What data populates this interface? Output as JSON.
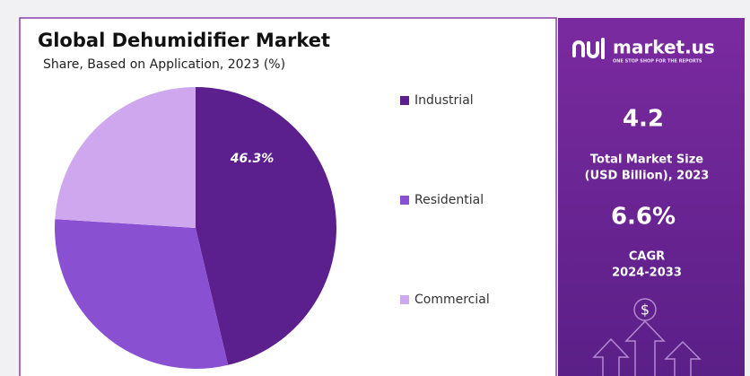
{
  "chart_data": {
    "type": "pie",
    "title": "Global Dehumidifier Market",
    "subtitle": "Share, Based on Application, 2023 (%)",
    "categories": [
      "Industrial",
      "Residential",
      "Commercial"
    ],
    "values": [
      46.3,
      29.7,
      24.0
    ],
    "value_labels": [
      "46.3%",
      null,
      null
    ],
    "colors": [
      "#5b1f8e",
      "#8a50d2",
      "#cfa7ee"
    ],
    "legend": "right"
  },
  "sidebar": {
    "brand": "market.us",
    "tagline": "ONE STOP SHOP FOR THE REPORTS",
    "market_size": "4.2",
    "market_size_label_1": "Total Market Size",
    "market_size_label_2": "(USD Billion), 2023",
    "cagr": "6.6%",
    "cagr_label": "CAGR",
    "cagr_period": "2024-2033",
    "currency": "$"
  }
}
